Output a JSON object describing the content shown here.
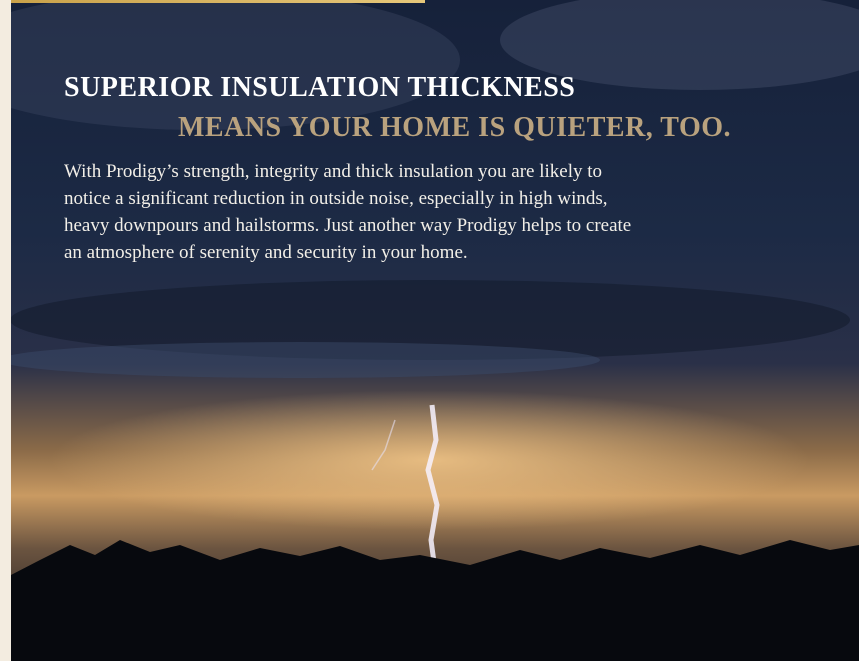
{
  "heading": {
    "line1": "SUPERIOR INSULATION THICKNESS",
    "line2": "MEANS YOUR HOME IS QUIETER, TOO."
  },
  "body": {
    "lines": [
      "With Prodigy’s strength, integrity and thick insulation you are likely to",
      "notice a significant reduction in outside noise, especially in high winds,",
      "heavy downpours and hailstorms. Just another way Prodigy helps to create",
      "an atmosphere of serenity and security in your home."
    ]
  }
}
